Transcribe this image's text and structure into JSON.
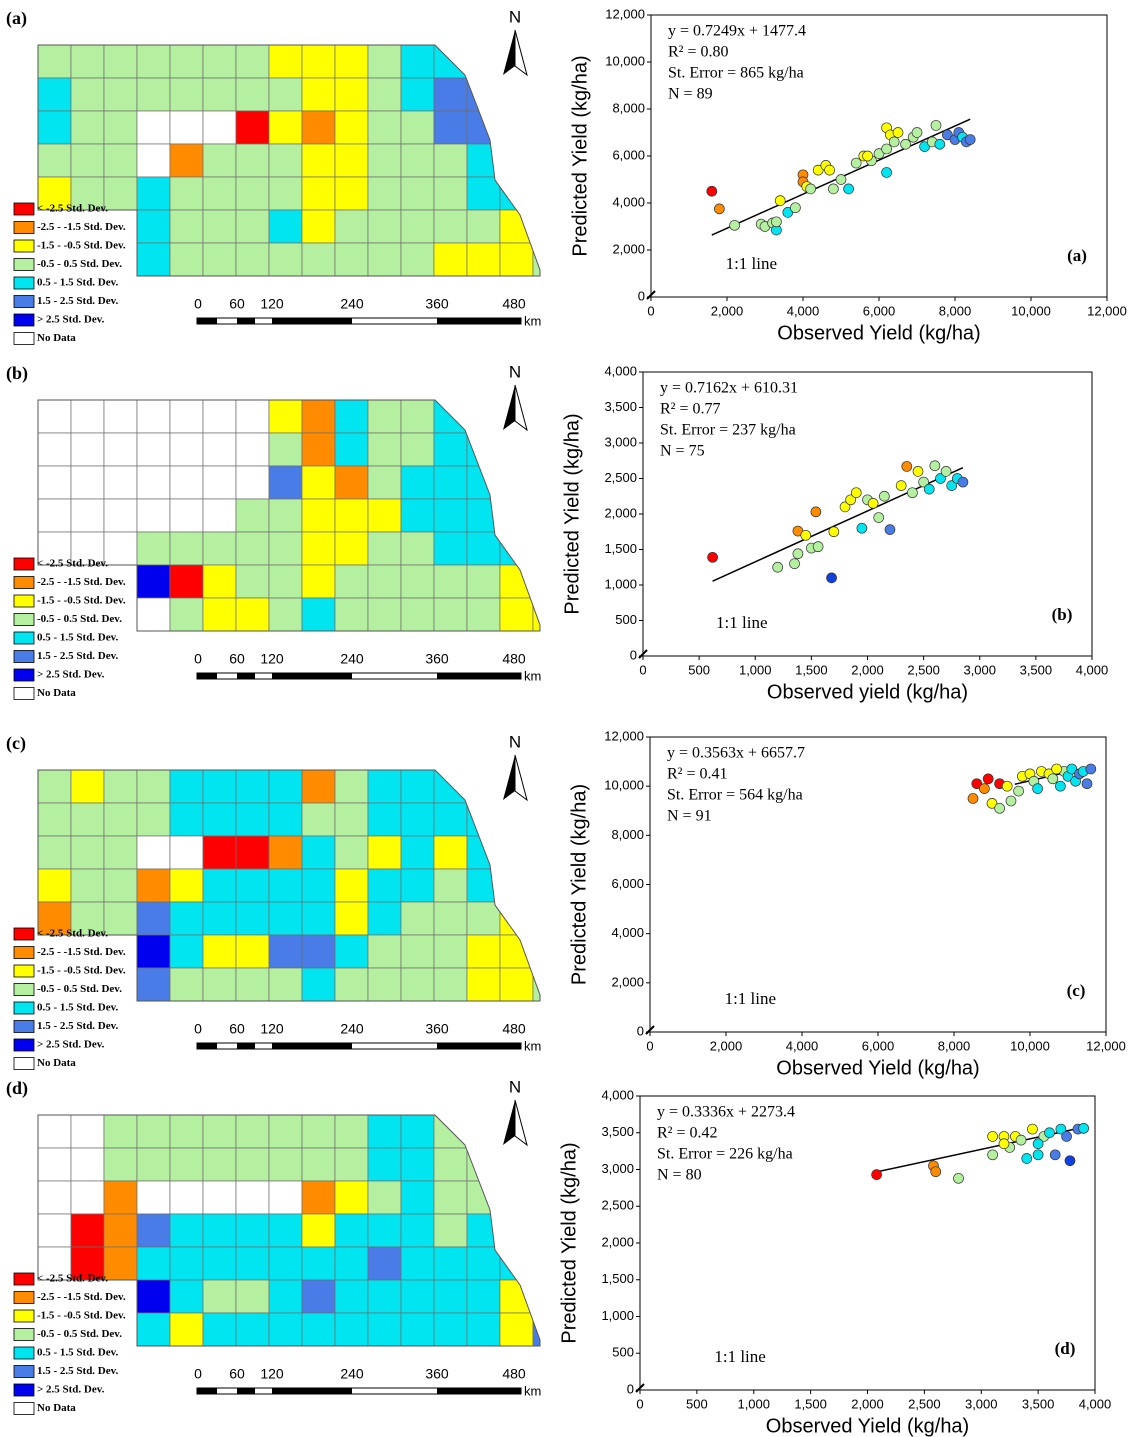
{
  "chart_data": [
    {
      "type": "scatter",
      "x_label": "Observed Yield (kg/ha)",
      "y_label": "Predicted Yield (kg/ha)",
      "annotations": [
        "y = 0.7249x + 1477.4",
        "R² = 0.80",
        "St. Error = 865 kg/ha",
        "N = 89"
      ],
      "line_label": "1:1 line",
      "panel_label": "(a)",
      "xlim": [
        0,
        12000
      ],
      "ylim": [
        0,
        12000
      ],
      "xticks": [
        0,
        {
          "value": 2000,
          "label": "2,000"
        },
        {
          "value": 4000,
          "label": "4,000"
        },
        {
          "value": 6000,
          "label": "6,000"
        },
        {
          "value": 8000,
          "label": "8,000"
        },
        {
          "value": 10000,
          "label": "10,000"
        },
        {
          "value": 12000,
          "label": "12,000"
        }
      ],
      "yticks": [
        0,
        {
          "value": 2000,
          "label": "2,000"
        },
        {
          "value": 4000,
          "label": "4,000"
        },
        {
          "value": 6000,
          "label": "6,000"
        },
        {
          "value": 8000,
          "label": "8,000"
        },
        {
          "value": 10000,
          "label": "10,000"
        },
        {
          "value": 12000,
          "label": "12,000"
        }
      ],
      "trendline": {
        "slope": 0.7249,
        "intercept": 1477.4,
        "x": [
          1600,
          8400
        ]
      },
      "x": [
        1600,
        1800,
        2200,
        2900,
        3000,
        3200,
        3300,
        3300,
        3400,
        3600,
        3800,
        4000,
        4000,
        4100,
        4200,
        4400,
        4600,
        4700,
        4800,
        5000,
        5200,
        5400,
        5600,
        5800,
        6000,
        6200,
        6200,
        6300,
        6400,
        6500,
        6700,
        6900,
        7000,
        7200,
        7400,
        7500,
        7600,
        7800,
        8000,
        8100,
        8200,
        8300,
        8400,
        6200,
        5700
      ],
      "values": [
        4500,
        3750,
        3050,
        3100,
        3000,
        3150,
        2850,
        3200,
        4100,
        3600,
        3800,
        5200,
        4900,
        4700,
        4600,
        5400,
        5600,
        5400,
        4600,
        5000,
        4600,
        5700,
        6000,
        5800,
        6100,
        5300,
        7200,
        6900,
        6600,
        7000,
        6500,
        6800,
        7000,
        6400,
        6600,
        7300,
        6500,
        6900,
        6700,
        7000,
        6800,
        6600,
        6700,
        6300,
        6000
      ],
      "colors": [
        "#ff0000",
        "#ff8c00",
        "#b4f0a0",
        "#b4f0a0",
        "#b4f0a0",
        "#b4f0a0",
        "#00e5f0",
        "#b4f0a0",
        "#ffff00",
        "#00e5f0",
        "#b4f0a0",
        "#ff8c00",
        "#ff8c00",
        "#ffff00",
        "#b4f0a0",
        "#ffff00",
        "#ffff00",
        "#ffff00",
        "#b4f0a0",
        "#b4f0a0",
        "#00e5f0",
        "#b4f0a0",
        "#ffff00",
        "#b4f0a0",
        "#b4f0a0",
        "#00e5f0",
        "#ffff00",
        "#ffff00",
        "#b4f0a0",
        "#ffff00",
        "#b4f0a0",
        "#b4f0a0",
        "#b4f0a0",
        "#00e5f0",
        "#b4f0a0",
        "#b4f0a0",
        "#00e5f0",
        "#4a7ce8",
        "#4a7ce8",
        "#4a7ce8",
        "#00e5f0",
        "#4a7ce8",
        "#4a7ce8",
        "#b4f0a0",
        "#ffff00"
      ]
    },
    {
      "type": "scatter",
      "x_label": "Observed yield (kg/ha)",
      "y_label": "Predicted Yield (kg/ha)",
      "annotations": [
        "y = 0.7162x + 610.31",
        "R² = 0.77",
        "St. Error = 237 kg/ha",
        "N = 75"
      ],
      "line_label": "1:1 line",
      "panel_label": "(b)",
      "xlim": [
        0,
        4000
      ],
      "ylim": [
        0,
        4000
      ],
      "xticks": [
        0,
        500,
        {
          "value": 1000,
          "label": "1,000"
        },
        {
          "value": 1500,
          "label": "1,500"
        },
        {
          "value": 2000,
          "label": "2,000"
        },
        {
          "value": 2500,
          "label": "2,500"
        },
        {
          "value": 3000,
          "label": "3,000"
        },
        {
          "value": 3500,
          "label": "3,500"
        },
        {
          "value": 4000,
          "label": "4,000"
        }
      ],
      "yticks": [
        0,
        500,
        {
          "value": 1000,
          "label": "1,000"
        },
        {
          "value": 1500,
          "label": "1,500"
        },
        {
          "value": 2000,
          "label": "2,000"
        },
        {
          "value": 2500,
          "label": "2,500"
        },
        {
          "value": 3000,
          "label": "3,000"
        },
        {
          "value": 3500,
          "label": "3,500"
        },
        {
          "value": 4000,
          "label": "4,000"
        }
      ],
      "trendline": {
        "slope": 0.7162,
        "intercept": 610.31,
        "x": [
          620,
          2850
        ]
      },
      "x": [
        620,
        1200,
        1350,
        1380,
        1380,
        1500,
        1540,
        1560,
        1680,
        1700,
        1800,
        1850,
        1900,
        1950,
        2000,
        2050,
        2150,
        2200,
        2300,
        2350,
        2400,
        2450,
        2500,
        2550,
        2600,
        2650,
        2700,
        2750,
        2800,
        2850,
        1450,
        2100
      ],
      "values": [
        1390,
        1250,
        1300,
        1760,
        1440,
        1520,
        2030,
        1540,
        1100,
        1750,
        2100,
        2200,
        2300,
        1800,
        2200,
        2150,
        2250,
        1780,
        2400,
        2670,
        2300,
        2600,
        2450,
        2350,
        2680,
        2500,
        2600,
        2400,
        2500,
        2450,
        1700,
        1950
      ],
      "colors": [
        "#ff0000",
        "#b4f0a0",
        "#b4f0a0",
        "#ff8c00",
        "#b4f0a0",
        "#b4f0a0",
        "#ff8c00",
        "#b4f0a0",
        "#1040e0",
        "#ffff00",
        "#ffff00",
        "#ffff00",
        "#ffff00",
        "#00e5f0",
        "#b4f0a0",
        "#ffff00",
        "#b4f0a0",
        "#4a7ce8",
        "#ffff00",
        "#ff8c00",
        "#b4f0a0",
        "#ffff00",
        "#b4f0a0",
        "#00e5f0",
        "#b4f0a0",
        "#00e5f0",
        "#b4f0a0",
        "#00e5f0",
        "#00e5f0",
        "#4a7ce8",
        "#ffff00",
        "#b4f0a0"
      ]
    },
    {
      "type": "scatter",
      "x_label": "Observed Yield (kg/ha)",
      "y_label": "Predicted Yield (kg/ha)",
      "annotations": [
        "y = 0.3563x + 6657.7",
        "R² = 0.41",
        "St. Error = 564 kg/ha",
        "N = 91"
      ],
      "line_label": "1:1 line",
      "panel_label": "(c)",
      "xlim": [
        0,
        12000
      ],
      "ylim": [
        0,
        12000
      ],
      "xticks": [
        0,
        {
          "value": 2000,
          "label": "2,000"
        },
        {
          "value": 4000,
          "label": "4,000"
        },
        {
          "value": 6000,
          "label": "6,000"
        },
        {
          "value": 8000,
          "label": "8,000"
        },
        {
          "value": 10000,
          "label": "10,000"
        },
        {
          "value": 12000,
          "label": "12,000"
        }
      ],
      "yticks": [
        0,
        {
          "value": 2000,
          "label": "2,000"
        },
        {
          "value": 4000,
          "label": "4,000"
        },
        {
          "value": 6000,
          "label": "6,000"
        },
        {
          "value": 8000,
          "label": "8,000"
        },
        {
          "value": 10000,
          "label": "10,000"
        },
        {
          "value": 12000,
          "label": "12,000"
        }
      ],
      "trendline": {
        "slope": 0.3563,
        "intercept": 6657.7,
        "x": [
          9600,
          11600
        ]
      },
      "x": [
        8500,
        8600,
        8800,
        8900,
        9000,
        9200,
        9200,
        9400,
        9500,
        9700,
        9800,
        10000,
        10100,
        10300,
        10500,
        10600,
        10800,
        10900,
        11000,
        11100,
        11200,
        11300,
        11400,
        11500,
        11600,
        10200,
        10700
      ],
      "values": [
        9500,
        10100,
        9900,
        10300,
        9300,
        10100,
        9100,
        10000,
        9400,
        9800,
        10400,
        10500,
        10200,
        10600,
        10500,
        10300,
        10000,
        10600,
        10400,
        10700,
        10200,
        10500,
        10600,
        10100,
        10700,
        9900,
        10700
      ],
      "colors": [
        "#ff8c00",
        "#ff0000",
        "#ff8c00",
        "#ff0000",
        "#ffff00",
        "#ff0000",
        "#b4f0a0",
        "#ffff00",
        "#b4f0a0",
        "#b4f0a0",
        "#ffff00",
        "#ffff00",
        "#b4f0a0",
        "#ffff00",
        "#ffff00",
        "#b4f0a0",
        "#00e5f0",
        "#b4f0a0",
        "#00e5f0",
        "#00e5f0",
        "#00e5f0",
        "#4a7ce8",
        "#00e5f0",
        "#4a7ce8",
        "#4a7ce8",
        "#00e5f0",
        "#ffff00"
      ]
    },
    {
      "type": "scatter",
      "x_label": "Observed Yield (kg/ha)",
      "y_label": "Predicted Yield (kg/ha)",
      "annotations": [
        "y = 0.3336x + 2273.4",
        "R² = 0.42",
        "St. Error = 226 kg/ha",
        "N = 80"
      ],
      "line_label": "1:1 line",
      "panel_label": "(d)",
      "xlim": [
        0,
        4000
      ],
      "ylim": [
        0,
        4000
      ],
      "xticks": [
        0,
        500,
        {
          "value": 1000,
          "label": "1,000"
        },
        {
          "value": 1500,
          "label": "1,500"
        },
        {
          "value": 2000,
          "label": "2,000"
        },
        {
          "value": 2500,
          "label": "2,500"
        },
        {
          "value": 3000,
          "label": "3,000"
        },
        {
          "value": 3500,
          "label": "3,500"
        },
        {
          "value": 4000,
          "label": "4,000"
        }
      ],
      "yticks": [
        0,
        500,
        {
          "value": 1000,
          "label": "1,000"
        },
        {
          "value": 1500,
          "label": "1,500"
        },
        {
          "value": 2000,
          "label": "2,000"
        },
        {
          "value": 2500,
          "label": "2,500"
        },
        {
          "value": 3000,
          "label": "3,000"
        },
        {
          "value": 3500,
          "label": "3,500"
        },
        {
          "value": 4000,
          "label": "4,000"
        }
      ],
      "trendline": {
        "slope": 0.3336,
        "intercept": 2273.4,
        "x": [
          2080,
          3900
        ]
      },
      "x": [
        2080,
        2580,
        2600,
        2800,
        3100,
        3100,
        3200,
        3250,
        3300,
        3350,
        3400,
        3450,
        3500,
        3550,
        3600,
        3650,
        3700,
        3750,
        3780,
        3850,
        3900,
        3500,
        3200
      ],
      "values": [
        2930,
        3050,
        2970,
        2880,
        3200,
        3450,
        3450,
        3300,
        3450,
        3400,
        3150,
        3550,
        3200,
        3450,
        3500,
        3200,
        3550,
        3450,
        3120,
        3550,
        3560,
        3350,
        3350
      ],
      "colors": [
        "#ff0000",
        "#ff8c00",
        "#ff8c00",
        "#b4f0a0",
        "#b4f0a0",
        "#ffff00",
        "#ffff00",
        "#b4f0a0",
        "#ffff00",
        "#b4f0a0",
        "#00e5f0",
        "#ffff00",
        "#00e5f0",
        "#b4f0a0",
        "#00e5f0",
        "#4a7ce8",
        "#00e5f0",
        "#4a7ce8",
        "#1040e0",
        "#4a7ce8",
        "#00e5f0",
        "#00e5f0",
        "#ffff00"
      ]
    }
  ],
  "maps": {
    "panel_labels": [
      "(a)",
      "(b)",
      "(c)",
      "(d)"
    ],
    "north": "N",
    "scale_labels": [
      "0",
      "60",
      "120",
      "240",
      "360",
      "480"
    ],
    "scale_unit": "km",
    "legend": [
      {
        "label": "< -2.5 Std. Dev.",
        "color": "#ff0000"
      },
      {
        "label": "-2.5 - -1.5 Std. Dev.",
        "color": "#ff8c00"
      },
      {
        "label": "-1.5 - -0.5 Std. Dev.",
        "color": "#ffff00"
      },
      {
        "label": "-0.5 - 0.5 Std. Dev.",
        "color": "#b4f0a0"
      },
      {
        "label": "0.5 - 1.5 Std. Dev.",
        "color": "#00e5f0"
      },
      {
        "label": "1.5 - 2.5 Std. Dev.",
        "color": "#4a7ce8"
      },
      {
        "label": "> 2.5 Std. Dev.",
        "color": "#0000ee"
      },
      {
        "label": "No Data",
        "color": "#ffffff"
      }
    ]
  }
}
